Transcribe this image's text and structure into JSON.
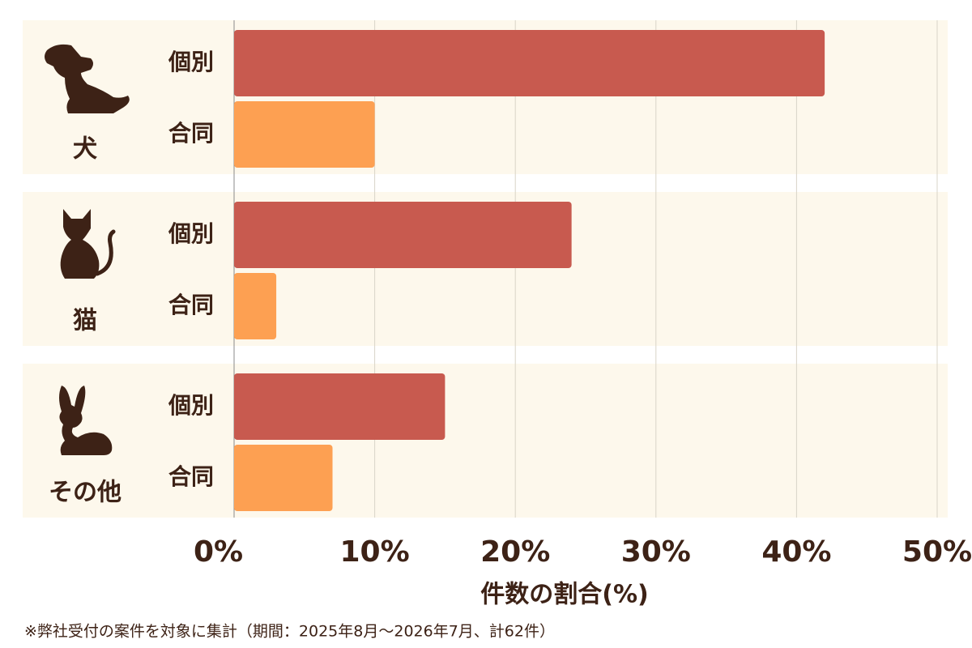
{
  "chart_data": {
    "type": "grouped-hbar",
    "categories": [
      "犬",
      "猫",
      "その他"
    ],
    "series": [
      {
        "name": "個別",
        "color": "#c85a4f",
        "values": [
          42,
          24,
          15
        ]
      },
      {
        "name": "合同",
        "color": "#fda052",
        "values": [
          10,
          3,
          7
        ]
      }
    ],
    "xlabel": "件数の割合(%)",
    "xlim": [
      0,
      50
    ],
    "xticks": [
      {
        "value": 0,
        "label": "0%"
      },
      {
        "value": 10,
        "label": "10%"
      },
      {
        "value": 20,
        "label": "20%"
      },
      {
        "value": 30,
        "label": "30%"
      },
      {
        "value": 40,
        "label": "40%"
      },
      {
        "value": 50,
        "label": "50%"
      }
    ],
    "grid": true,
    "note": "※弊社受付の案件を対象に集計（期間：2025年8月～2026年7月、計62件）"
  }
}
